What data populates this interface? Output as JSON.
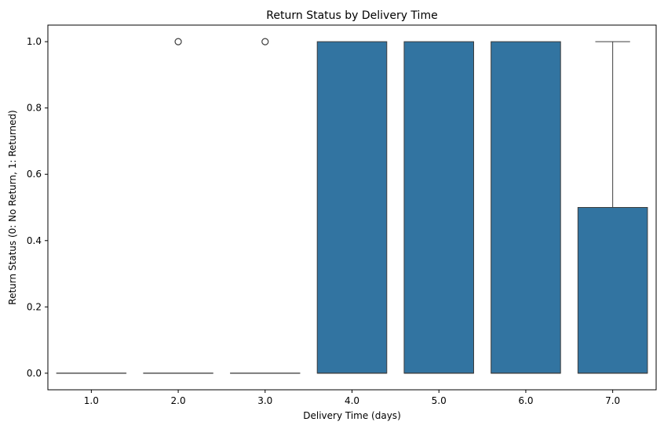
{
  "chart_data": {
    "type": "box",
    "title": "Return Status by Delivery Time",
    "xlabel": "Delivery Time (days)",
    "ylabel": "Return Status (0: No Return, 1: Returned)",
    "categories": [
      "1.0",
      "2.0",
      "3.0",
      "4.0",
      "5.0",
      "6.0",
      "7.0"
    ],
    "boxes": [
      {
        "category": "1.0",
        "q1": 0,
        "median": 0,
        "q3": 0,
        "whisker_low": 0,
        "whisker_high": 0,
        "outliers": []
      },
      {
        "category": "2.0",
        "q1": 0,
        "median": 0,
        "q3": 0,
        "whisker_low": 0,
        "whisker_high": 0,
        "outliers": [
          1
        ]
      },
      {
        "category": "3.0",
        "q1": 0,
        "median": 0,
        "q3": 0,
        "whisker_low": 0,
        "whisker_high": 0,
        "outliers": [
          1
        ]
      },
      {
        "category": "4.0",
        "q1": 0,
        "median": 0,
        "q3": 1,
        "whisker_low": 0,
        "whisker_high": 1,
        "outliers": []
      },
      {
        "category": "5.0",
        "q1": 0,
        "median": 0,
        "q3": 1,
        "whisker_low": 0,
        "whisker_high": 1,
        "outliers": []
      },
      {
        "category": "6.0",
        "q1": 0,
        "median": 0,
        "q3": 1,
        "whisker_low": 0,
        "whisker_high": 1,
        "outliers": []
      },
      {
        "category": "7.0",
        "q1": 0,
        "median": 0,
        "q3": 0.5,
        "whisker_low": 0,
        "whisker_high": 1,
        "outliers": []
      }
    ],
    "ylim": [
      -0.05,
      1.05
    ],
    "yticks": [
      0.0,
      0.2,
      0.4,
      0.6,
      0.8,
      1.0
    ],
    "ytick_labels": [
      "0.0",
      "0.2",
      "0.4",
      "0.6",
      "0.8",
      "1.0"
    ],
    "grid": false,
    "box_color": "#3274a1",
    "line_color": "#3d3d3d"
  }
}
